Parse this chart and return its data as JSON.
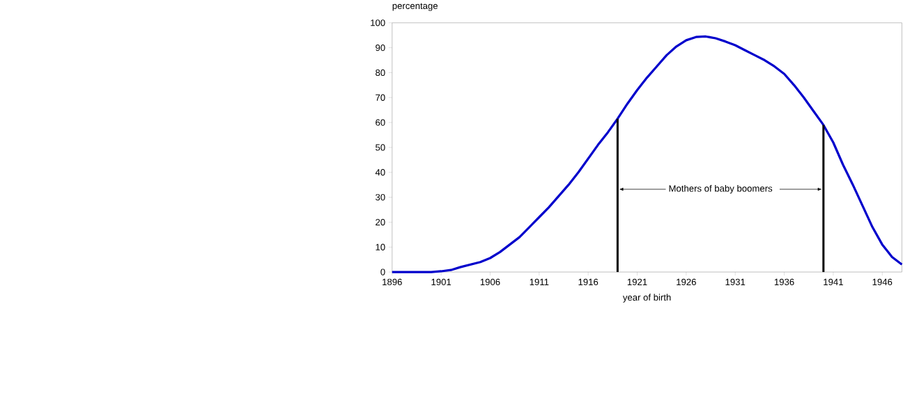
{
  "chart_data": {
    "type": "line",
    "ylabel": "percentage",
    "xlabel": "year of birth",
    "x": [
      1896,
      1897,
      1898,
      1899,
      1900,
      1901,
      1902,
      1903,
      1904,
      1905,
      1906,
      1907,
      1908,
      1909,
      1910,
      1911,
      1912,
      1913,
      1914,
      1915,
      1916,
      1917,
      1918,
      1919,
      1920,
      1921,
      1922,
      1923,
      1924,
      1925,
      1926,
      1927,
      1928,
      1929,
      1930,
      1931,
      1932,
      1933,
      1934,
      1935,
      1936,
      1937,
      1938,
      1939,
      1940,
      1941,
      1942,
      1943,
      1944,
      1945,
      1946,
      1947,
      1948
    ],
    "series": [
      {
        "color": "#0000cc",
        "values": [
          0,
          0,
          0,
          0,
          0,
          0.3,
          0.8,
          2,
          3,
          4,
          5.6,
          8,
          11,
          14,
          18,
          22,
          26,
          30.5,
          35,
          40,
          45.5,
          51,
          56,
          61.5,
          67.5,
          73,
          78,
          82.5,
          87,
          90.5,
          93,
          94.3,
          94.5,
          93.8,
          92.5,
          91,
          89,
          87,
          85,
          82.5,
          79.5,
          75,
          70,
          64.5,
          59,
          52,
          43,
          35,
          26.5,
          18,
          11,
          6,
          3
        ]
      }
    ],
    "xlim": [
      1896,
      1948
    ],
    "ylim": [
      0,
      100
    ],
    "xticks": [
      1896,
      1901,
      1906,
      1911,
      1916,
      1921,
      1926,
      1931,
      1936,
      1941,
      1946
    ],
    "yticks": [
      0,
      10,
      20,
      30,
      40,
      50,
      60,
      70,
      80,
      90,
      100
    ],
    "ref_lines": [
      {
        "axis": "x",
        "value": 1919,
        "color": "#000000"
      },
      {
        "axis": "x",
        "value": 1940,
        "color": "#000000"
      }
    ],
    "annotations": [
      "Mothers of baby boomers"
    ],
    "grid": false,
    "legend": false,
    "marker": "none",
    "line_style": "solid"
  }
}
